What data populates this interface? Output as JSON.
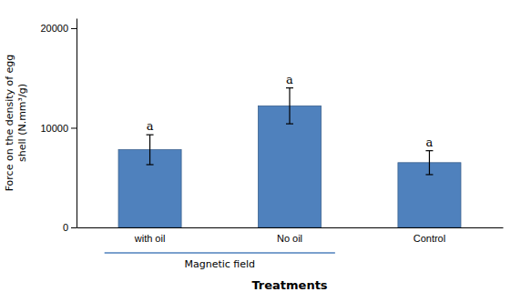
{
  "chart_data": {
    "type": "bar",
    "categories": [
      "with oil",
      "No oil",
      "Control"
    ],
    "values": [
      7800,
      12200,
      6500
    ],
    "errors": [
      1500,
      1800,
      1200
    ],
    "significance_labels": [
      "a",
      "a",
      "a"
    ],
    "color": "#4F81BD",
    "ylabel": [
      "Force on the density of egg",
      "shell (N.mm³/g)"
    ],
    "xlabel": "Treatments",
    "annotations": [
      {
        "text": "Magnetic field",
        "span": [
          "with oil",
          "No oil"
        ]
      }
    ],
    "ylim": [
      0,
      21000
    ],
    "yticks": [
      0,
      10000,
      20000
    ],
    "grid": false
  }
}
